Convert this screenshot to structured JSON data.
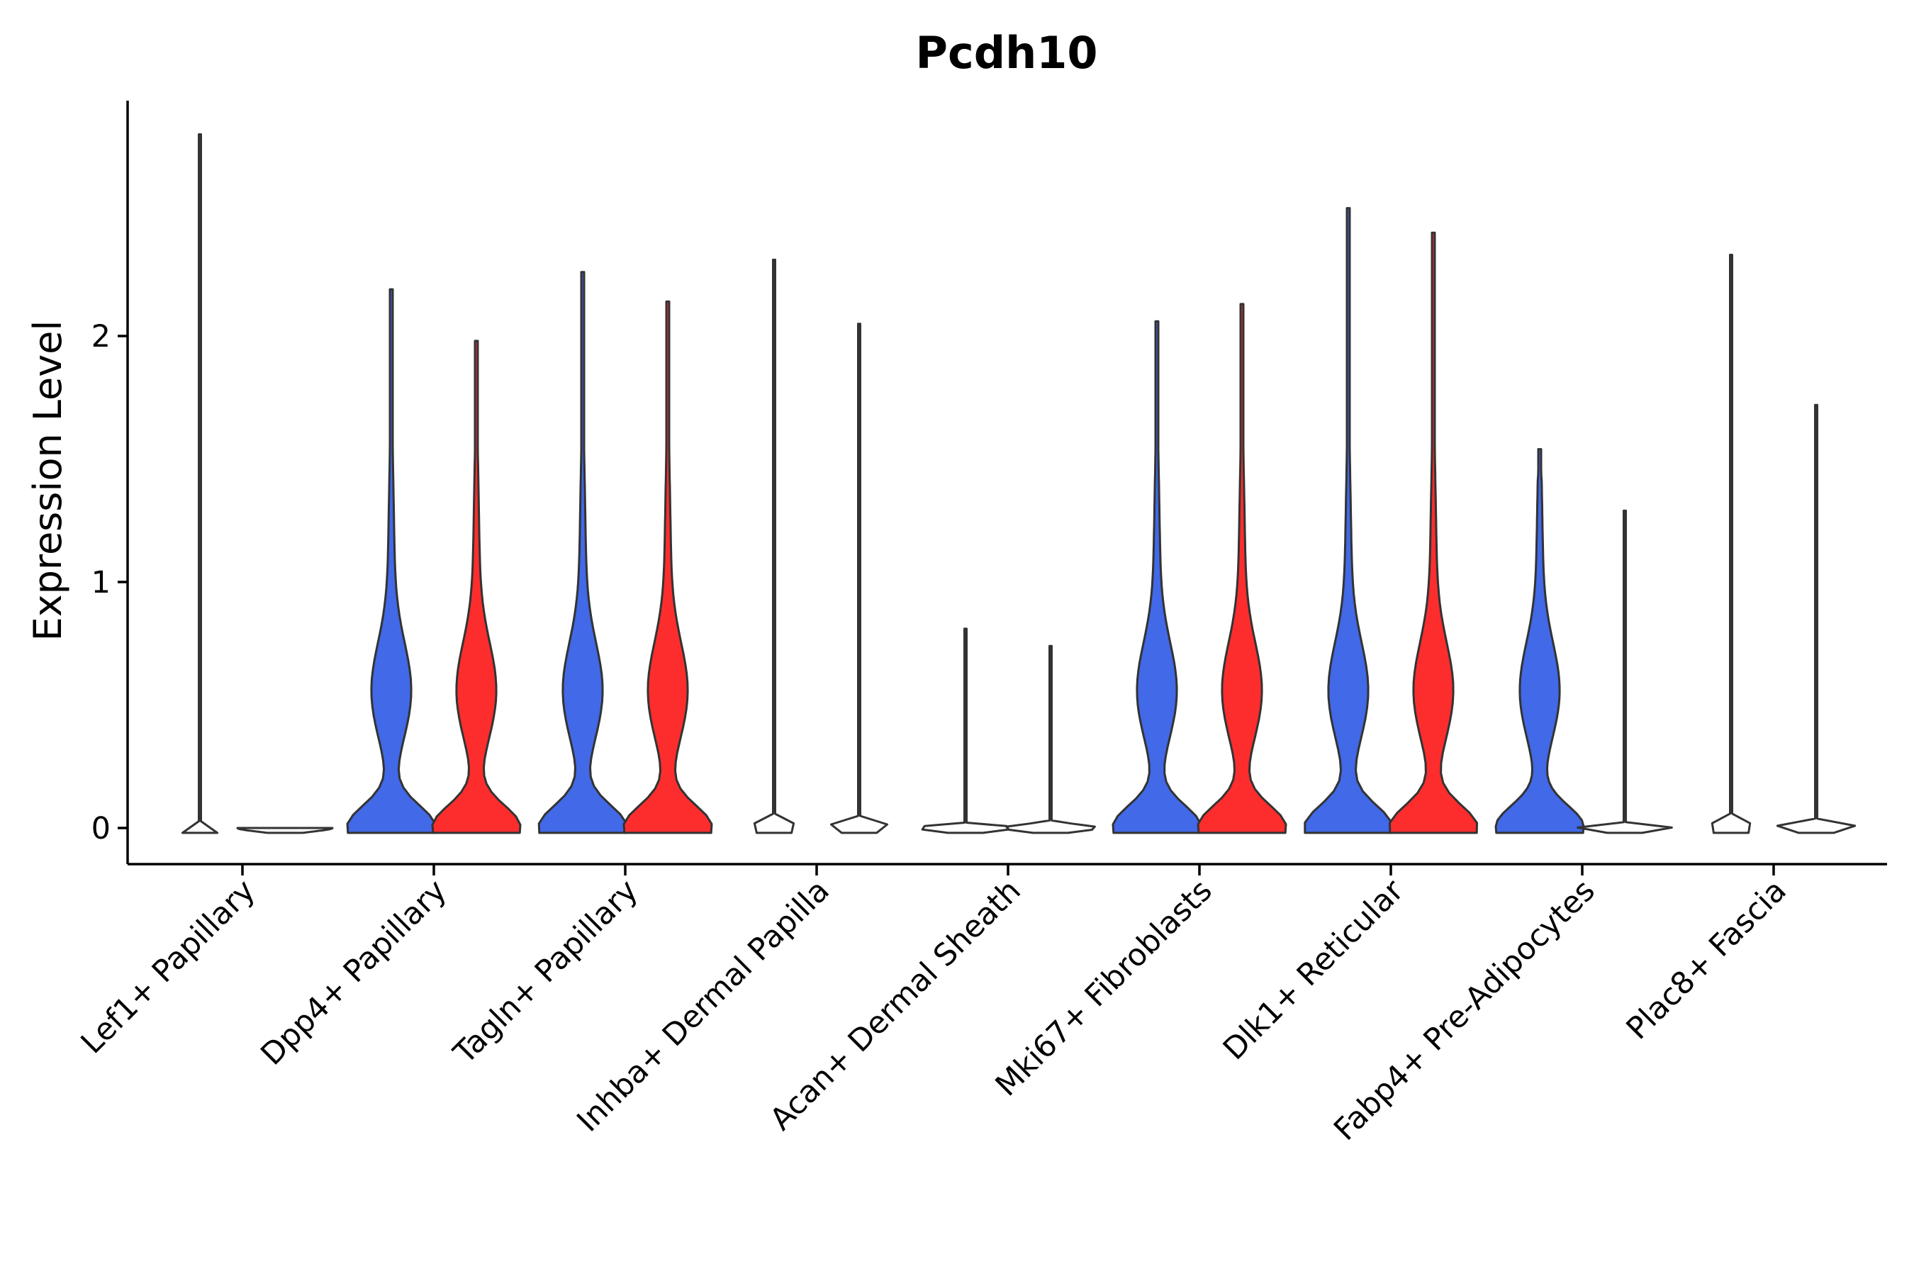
{
  "chart_data": {
    "type": "violin",
    "title": "Pcdh10",
    "xlabel": "",
    "ylabel": "Expression Level",
    "ylim": [
      -0.14,
      2.96
    ],
    "yticks": [
      0,
      1,
      2
    ],
    "legend": "none",
    "colors": {
      "group1": "#4169e8",
      "group2": "#fe2d2d"
    },
    "categories": [
      "Lef1+ Papillary",
      "Dpp4+ Papillary",
      "Tagln+ Papillary",
      "Inhba+ Dermal Papilla",
      "Acan+ Dermal Sheath",
      "Mki67+ Fibroblasts",
      "Dlk1+ Reticular",
      "Fabp4+ Pre-Adipocytes",
      "Plac8+ Fascia"
    ],
    "series": [
      {
        "name": "group1",
        "max": [
          2.82,
          2.19,
          2.26,
          2.31,
          0.81,
          2.06,
          2.52,
          1.54,
          2.33
        ],
        "filled": [
          false,
          true,
          true,
          false,
          false,
          true,
          true,
          true,
          false
        ]
      },
      {
        "name": "group2",
        "max": [
          0.0,
          1.98,
          2.14,
          2.05,
          0.74,
          2.13,
          2.42,
          1.29,
          1.72
        ],
        "filled": [
          false,
          true,
          true,
          false,
          false,
          true,
          true,
          false,
          false
        ]
      }
    ]
  }
}
